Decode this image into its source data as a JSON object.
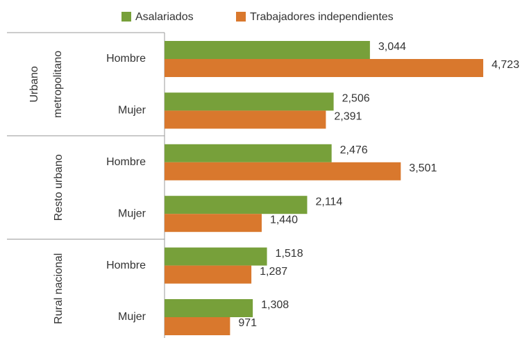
{
  "chart_data": {
    "type": "bar",
    "orientation": "horizontal",
    "groups": [
      [
        "Urbano",
        "metropolitano"
      ],
      [
        "Resto urbano"
      ],
      [
        "Rural nacional"
      ]
    ],
    "categories": [
      "Hombre",
      "Mujer",
      "Hombre",
      "Mujer",
      "Hombre",
      "Mujer"
    ],
    "series": [
      {
        "name": "Asalariados",
        "color": "#77a03a",
        "values": [
          3044,
          2506,
          2476,
          2114,
          1518,
          1308
        ],
        "value_labels": [
          "3,044",
          "2,506",
          "2,476",
          "2,114",
          "1,518",
          "1,308"
        ]
      },
      {
        "name": "Trabajadores independientes",
        "color": "#d9782d",
        "values": [
          4723,
          2391,
          3501,
          1440,
          1287,
          971
        ],
        "value_labels": [
          "4,723",
          "2,391",
          "3,501",
          "1,440",
          "1,287",
          "971"
        ]
      }
    ],
    "xlim": [
      0,
      5000
    ],
    "legend": "top"
  }
}
